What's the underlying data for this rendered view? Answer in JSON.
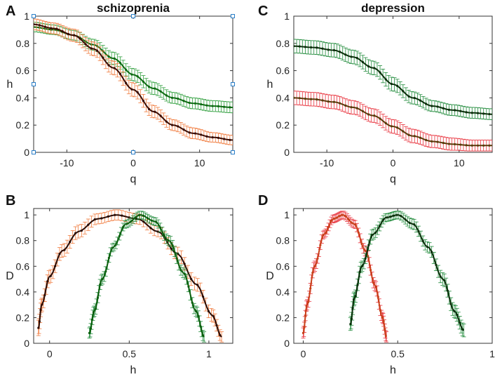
{
  "chart_data": [
    {
      "id": "A",
      "panel_label": "A",
      "title": "schizoprenia",
      "type": "line",
      "xlabel": "q",
      "ylabel": "h",
      "xlim": [
        -15,
        15
      ],
      "ylim": [
        0,
        1
      ],
      "xticks": [
        -10,
        0,
        10
      ],
      "yticks": [
        0,
        0.2,
        0.4,
        0.6,
        0.8,
        1
      ],
      "ytick_labels": [
        "0",
        "0.2",
        "0.4",
        "0.6",
        "0.8",
        "1"
      ],
      "xtick_labels": [
        "-10",
        "0",
        "10"
      ],
      "selected_axes": true,
      "series": [
        {
          "name": "green",
          "line_color": "#0d6b12",
          "bar_color": "#2e9e3c",
          "x": [
            -15,
            -12,
            -9,
            -6,
            -3,
            0,
            3,
            6,
            9,
            12,
            15
          ],
          "y": [
            0.92,
            0.9,
            0.86,
            0.79,
            0.69,
            0.57,
            0.47,
            0.4,
            0.36,
            0.34,
            0.33
          ],
          "err": [
            0.035,
            0.035,
            0.035,
            0.04,
            0.045,
            0.045,
            0.045,
            0.04,
            0.04,
            0.04,
            0.04
          ]
        },
        {
          "name": "orange",
          "line_color": "#3a0d05",
          "bar_color": "#f07a3c",
          "x": [
            -15,
            -12,
            -9,
            -6,
            -3,
            0,
            3,
            6,
            9,
            12,
            15
          ],
          "y": [
            0.94,
            0.91,
            0.86,
            0.76,
            0.62,
            0.46,
            0.3,
            0.2,
            0.14,
            0.11,
            0.09
          ],
          "err": [
            0.04,
            0.04,
            0.045,
            0.05,
            0.05,
            0.05,
            0.045,
            0.04,
            0.04,
            0.035,
            0.035
          ]
        }
      ]
    },
    {
      "id": "B",
      "panel_label": "B",
      "title": "",
      "type": "line",
      "xlabel": "h",
      "ylabel": "D",
      "xlim": [
        -0.1,
        1.15
      ],
      "ylim": [
        0,
        1.05
      ],
      "xticks": [
        0,
        0.5,
        1
      ],
      "yticks": [
        0,
        0.2,
        0.4,
        0.6,
        0.8,
        1
      ],
      "ytick_labels": [
        "0",
        "0.2",
        "0.4",
        "0.6",
        "0.8",
        "1"
      ],
      "xtick_labels": [
        "0",
        "0.5",
        "1"
      ],
      "selected_axes": false,
      "series": [
        {
          "name": "orange",
          "line_color": "#2a0c05",
          "bar_color": "#f07a3c",
          "x": [
            -0.07,
            -0.05,
            0.0,
            0.08,
            0.18,
            0.3,
            0.42,
            0.55,
            0.68,
            0.8,
            0.92,
            1.02,
            1.08
          ],
          "y": [
            0.12,
            0.3,
            0.52,
            0.72,
            0.87,
            0.97,
            1.0,
            0.97,
            0.87,
            0.7,
            0.46,
            0.22,
            0.05
          ],
          "err": [
            0.06,
            0.05,
            0.05,
            0.05,
            0.05,
            0.04,
            0.04,
            0.04,
            0.04,
            0.05,
            0.05,
            0.05,
            0.04
          ]
        },
        {
          "name": "green",
          "line_color": "#0b5e0d",
          "bar_color": "#1f8a3a",
          "x": [
            0.25,
            0.28,
            0.33,
            0.4,
            0.48,
            0.57,
            0.66,
            0.75,
            0.84,
            0.92,
            0.97
          ],
          "y": [
            0.08,
            0.25,
            0.5,
            0.75,
            0.93,
            1.0,
            0.95,
            0.8,
            0.55,
            0.25,
            0.05
          ],
          "err": [
            0.04,
            0.04,
            0.04,
            0.03,
            0.03,
            0.03,
            0.03,
            0.04,
            0.04,
            0.04,
            0.04
          ]
        }
      ]
    },
    {
      "id": "C",
      "panel_label": "C",
      "title": "depression",
      "type": "line",
      "xlabel": "q",
      "ylabel": "h",
      "xlim": [
        -15,
        15
      ],
      "ylim": [
        0,
        1
      ],
      "xticks": [
        -10,
        0,
        10
      ],
      "yticks": [
        0,
        0.2,
        0.4,
        0.6,
        0.8,
        1
      ],
      "ytick_labels": [
        "0",
        "0.2",
        "0.4",
        "0.6",
        "0.8",
        "1"
      ],
      "xtick_labels": [
        "-10",
        "0",
        "10"
      ],
      "selected_axes": false,
      "series": [
        {
          "name": "green",
          "line_color": "#0a2e0a",
          "bar_color": "#1f8a3a",
          "x": [
            -15,
            -12,
            -9,
            -6,
            -3,
            0,
            3,
            6,
            9,
            12,
            15
          ],
          "y": [
            0.78,
            0.77,
            0.75,
            0.7,
            0.62,
            0.5,
            0.4,
            0.34,
            0.31,
            0.29,
            0.28
          ],
          "err": [
            0.05,
            0.05,
            0.05,
            0.05,
            0.05,
            0.05,
            0.045,
            0.04,
            0.04,
            0.04,
            0.04
          ]
        },
        {
          "name": "red",
          "line_color": "#5a3a0a",
          "bar_color": "#e8323c",
          "x": [
            -15,
            -12,
            -9,
            -6,
            -3,
            0,
            3,
            6,
            9,
            12,
            15
          ],
          "y": [
            0.4,
            0.39,
            0.37,
            0.33,
            0.27,
            0.19,
            0.12,
            0.08,
            0.06,
            0.05,
            0.05
          ],
          "err": [
            0.05,
            0.05,
            0.05,
            0.05,
            0.05,
            0.05,
            0.05,
            0.045,
            0.045,
            0.04,
            0.04
          ]
        }
      ]
    },
    {
      "id": "D",
      "panel_label": "D",
      "title": "",
      "type": "line",
      "xlabel": "h",
      "ylabel": "D",
      "xlim": [
        -0.05,
        1.0
      ],
      "ylim": [
        0,
        1.05
      ],
      "xticks": [
        0,
        0.5,
        1
      ],
      "yticks": [
        0,
        0.2,
        0.4,
        0.6,
        0.8,
        1
      ],
      "ytick_labels": [
        "0",
        "0.2",
        "0.4",
        "0.6",
        "0.8",
        "1"
      ],
      "xtick_labels": [
        "0",
        "0.5",
        "1"
      ],
      "selected_axes": false,
      "series": [
        {
          "name": "red",
          "line_color": "#c8401a",
          "bar_color": "#e8323c",
          "x": [
            0.0,
            0.02,
            0.06,
            0.11,
            0.16,
            0.21,
            0.27,
            0.33,
            0.38,
            0.42,
            0.44
          ],
          "y": [
            0.08,
            0.3,
            0.6,
            0.85,
            0.97,
            1.0,
            0.93,
            0.72,
            0.45,
            0.2,
            0.05
          ],
          "err": [
            0.04,
            0.04,
            0.04,
            0.03,
            0.03,
            0.03,
            0.03,
            0.04,
            0.04,
            0.04,
            0.04
          ]
        },
        {
          "name": "green",
          "line_color": "#0a2e0a",
          "bar_color": "#1f8a3a",
          "x": [
            0.25,
            0.27,
            0.31,
            0.37,
            0.44,
            0.5,
            0.58,
            0.66,
            0.74,
            0.8,
            0.85
          ],
          "y": [
            0.15,
            0.35,
            0.6,
            0.85,
            0.98,
            1.0,
            0.93,
            0.75,
            0.5,
            0.25,
            0.1
          ],
          "err": [
            0.05,
            0.05,
            0.04,
            0.04,
            0.03,
            0.03,
            0.04,
            0.04,
            0.05,
            0.05,
            0.05
          ]
        }
      ]
    }
  ]
}
